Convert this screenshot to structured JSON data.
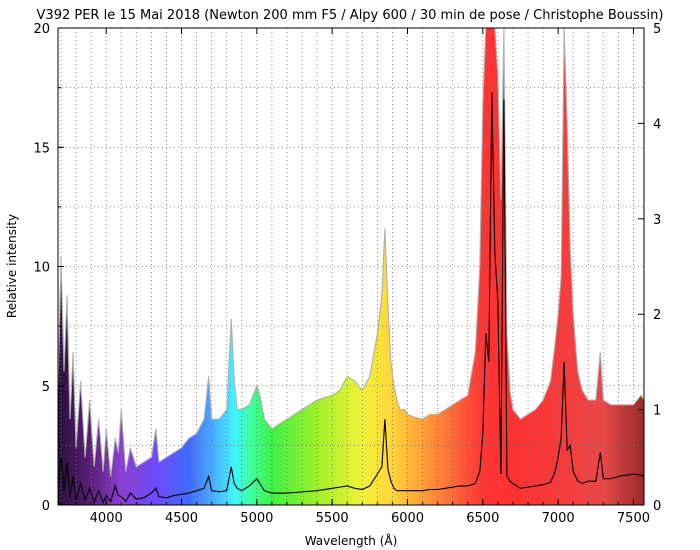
{
  "chart_data": {
    "type": "area",
    "title": "V392 PER le 15 Mai 2018 (Newton 200 mm F5 / Alpy 600 / 30 min de pose / Christophe Boussin)",
    "xlabel": "Wavelength (Å)",
    "ylabel": "Relative intensity",
    "xlim": [
      3680,
      7570
    ],
    "ylim": [
      0,
      20
    ],
    "y2lim": [
      0,
      5
    ],
    "x_ticks": [
      4000,
      4500,
      5000,
      5500,
      6000,
      6500,
      7000,
      7500
    ],
    "y_ticks": [
      0,
      5,
      10,
      15,
      20
    ],
    "y2_ticks": [
      0,
      1,
      2,
      3,
      4,
      5
    ],
    "grid": true,
    "background_fill": "visible-spectrum rainbow under the left-axis spectrum",
    "series": [
      {
        "axis": "right",
        "color": "#b0b0b0",
        "x": [
          3680,
          3700,
          3720,
          3740,
          3760,
          3780,
          3800,
          3830,
          3860,
          3890,
          3920,
          3950,
          3980,
          4000,
          4030,
          4060,
          4080,
          4100,
          4130,
          4160,
          4200,
          4250,
          4300,
          4330,
          4350,
          4400,
          4450,
          4500,
          4550,
          4600,
          4650,
          4680,
          4700,
          4750,
          4800,
          4830,
          4850,
          4870,
          4900,
          4950,
          5000,
          5020,
          5050,
          5100,
          5150,
          5200,
          5300,
          5400,
          5500,
          5550,
          5600,
          5650,
          5700,
          5750,
          5800,
          5830,
          5850,
          5870,
          5890,
          5910,
          5930,
          5950,
          5980,
          6000,
          6050,
          6100,
          6150,
          6200,
          6250,
          6300,
          6350,
          6400,
          6450,
          6480,
          6500,
          6520,
          6540,
          6560,
          6580,
          6600,
          6620,
          6640,
          6660,
          6680,
          6700,
          6750,
          6800,
          6850,
          6900,
          6950,
          6980,
          7000,
          7020,
          7040,
          7060,
          7080,
          7100,
          7130,
          7160,
          7200,
          7250,
          7280,
          7300,
          7350,
          7400,
          7450,
          7500,
          7550,
          7570
        ],
        "values": [
          1.2,
          2.6,
          1.4,
          2.2,
          0.9,
          1.6,
          0.6,
          1.3,
          0.5,
          1.1,
          0.4,
          0.9,
          0.35,
          0.8,
          0.3,
          0.7,
          0.55,
          1.0,
          0.35,
          0.6,
          0.4,
          0.45,
          0.5,
          0.8,
          0.45,
          0.5,
          0.55,
          0.6,
          0.7,
          0.75,
          0.9,
          1.35,
          0.9,
          0.9,
          1.0,
          1.95,
          1.3,
          1.0,
          1.0,
          1.05,
          1.25,
          1.15,
          0.9,
          0.8,
          0.85,
          0.9,
          1.0,
          1.1,
          1.15,
          1.2,
          1.35,
          1.3,
          1.2,
          1.35,
          1.8,
          2.2,
          2.9,
          2.1,
          1.5,
          1.25,
          1.1,
          1.0,
          1.0,
          0.95,
          0.92,
          0.9,
          0.95,
          0.95,
          1.0,
          1.05,
          1.1,
          1.15,
          1.6,
          2.5,
          4.2,
          5.0,
          5.0,
          5.0,
          5.0,
          4.5,
          3.2,
          5.0,
          1.8,
          1.2,
          1.0,
          0.9,
          0.95,
          1.0,
          1.1,
          1.3,
          1.7,
          2.0,
          2.4,
          5.0,
          4.0,
          2.7,
          2.0,
          1.4,
          1.2,
          1.1,
          1.1,
          1.6,
          1.1,
          1.05,
          1.05,
          1.05,
          1.05,
          1.15,
          1.1
        ]
      },
      {
        "axis": "left",
        "color": "#000000",
        "x": [
          3680,
          3700,
          3720,
          3740,
          3760,
          3780,
          3800,
          3830,
          3860,
          3890,
          3920,
          3950,
          3980,
          4000,
          4030,
          4060,
          4080,
          4100,
          4130,
          4160,
          4200,
          4250,
          4300,
          4330,
          4350,
          4400,
          4450,
          4500,
          4550,
          4600,
          4650,
          4680,
          4700,
          4750,
          4800,
          4830,
          4850,
          4870,
          4900,
          4950,
          5000,
          5020,
          5050,
          5100,
          5150,
          5200,
          5300,
          5400,
          5500,
          5550,
          5600,
          5650,
          5700,
          5750,
          5800,
          5830,
          5850,
          5870,
          5890,
          5910,
          5930,
          5950,
          5980,
          6000,
          6050,
          6100,
          6150,
          6200,
          6250,
          6300,
          6350,
          6400,
          6450,
          6480,
          6500,
          6520,
          6540,
          6560,
          6580,
          6600,
          6620,
          6640,
          6660,
          6680,
          6700,
          6750,
          6800,
          6850,
          6900,
          6950,
          6980,
          7000,
          7020,
          7040,
          7060,
          7080,
          7100,
          7130,
          7160,
          7200,
          7250,
          7280,
          7300,
          7350,
          7400,
          7450,
          7500,
          7550,
          7570
        ],
        "values": [
          0.7,
          2.0,
          0.6,
          1.8,
          0.3,
          1.2,
          0.2,
          0.9,
          0.2,
          0.7,
          0.1,
          0.6,
          0.1,
          0.4,
          0.15,
          0.8,
          0.4,
          0.35,
          0.15,
          0.5,
          0.25,
          0.3,
          0.5,
          0.7,
          0.35,
          0.3,
          0.4,
          0.45,
          0.5,
          0.6,
          0.7,
          1.2,
          0.6,
          0.55,
          0.6,
          1.6,
          0.9,
          0.7,
          0.6,
          0.8,
          1.1,
          0.9,
          0.6,
          0.5,
          0.5,
          0.5,
          0.55,
          0.6,
          0.7,
          0.75,
          0.8,
          0.7,
          0.65,
          0.8,
          1.3,
          1.6,
          3.6,
          1.5,
          1.0,
          0.7,
          0.6,
          0.6,
          0.6,
          0.6,
          0.6,
          0.6,
          0.65,
          0.65,
          0.7,
          0.75,
          0.8,
          0.8,
          0.9,
          1.4,
          3.0,
          7.2,
          6.0,
          17.3,
          10.6,
          8.5,
          1.3,
          17.0,
          1.2,
          1.0,
          0.9,
          0.7,
          0.75,
          0.8,
          0.85,
          0.95,
          1.4,
          2.0,
          2.8,
          6.0,
          2.3,
          2.5,
          1.4,
          1.0,
          0.9,
          1.0,
          1.0,
          2.2,
          1.1,
          1.1,
          1.2,
          1.25,
          1.3,
          1.25,
          1.2
        ]
      }
    ]
  }
}
